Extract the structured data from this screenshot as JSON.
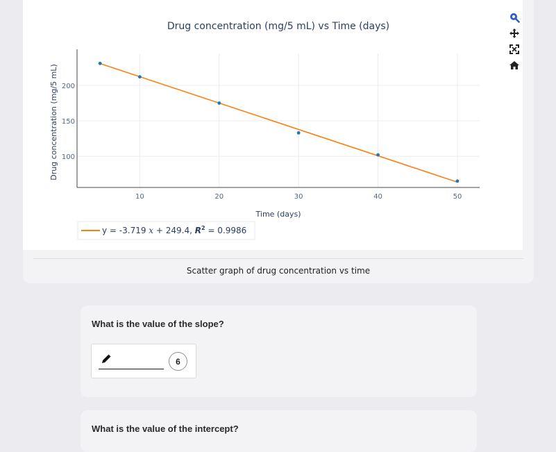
{
  "chart_data": {
    "type": "scatter",
    "title": "Drug concentration (mg/5 mL) vs Time (days)",
    "xlabel": "Time (days)",
    "ylabel": "Drug concentration (mg/5 mL)",
    "x_ticks": [
      "10",
      "20",
      "30",
      "40",
      "50"
    ],
    "y_ticks": [
      "100",
      "150",
      "200"
    ],
    "xlim": [
      2.1,
      52.8
    ],
    "ylim": [
      56,
      245
    ],
    "grid": true,
    "points": {
      "x": [
        5,
        10,
        20,
        30,
        40,
        50
      ],
      "y": [
        231,
        212,
        175,
        133,
        102,
        65
      ],
      "color": "#1f77b4"
    },
    "trendline": {
      "slope": -3.719,
      "intercept": 249.4,
      "color": "#ff7f0e",
      "legend_prefix": "y = -3.719",
      "legend_var_x": "x",
      "legend_mid": "+ 249.4,",
      "legend_r2": "R",
      "legend_r2_sup": "2",
      "legend_tail": "= 0.9986"
    },
    "legend_position": "bottom-left"
  },
  "caption": "Scatter graph of drug concentration vs time",
  "questions": [
    {
      "title": "What is the value of the slope?",
      "answer_value": "",
      "attempts": "6"
    },
    {
      "title": "What is the value of the intercept?"
    }
  ],
  "modebar": [
    "zoom-icon",
    "pan-icon",
    "autoscale-icon",
    "reset-home-icon"
  ],
  "colors": {
    "background": "#ecebef",
    "card": "#f3f3f6",
    "series": "#1f77b4",
    "fit": "#ff7f0e"
  }
}
